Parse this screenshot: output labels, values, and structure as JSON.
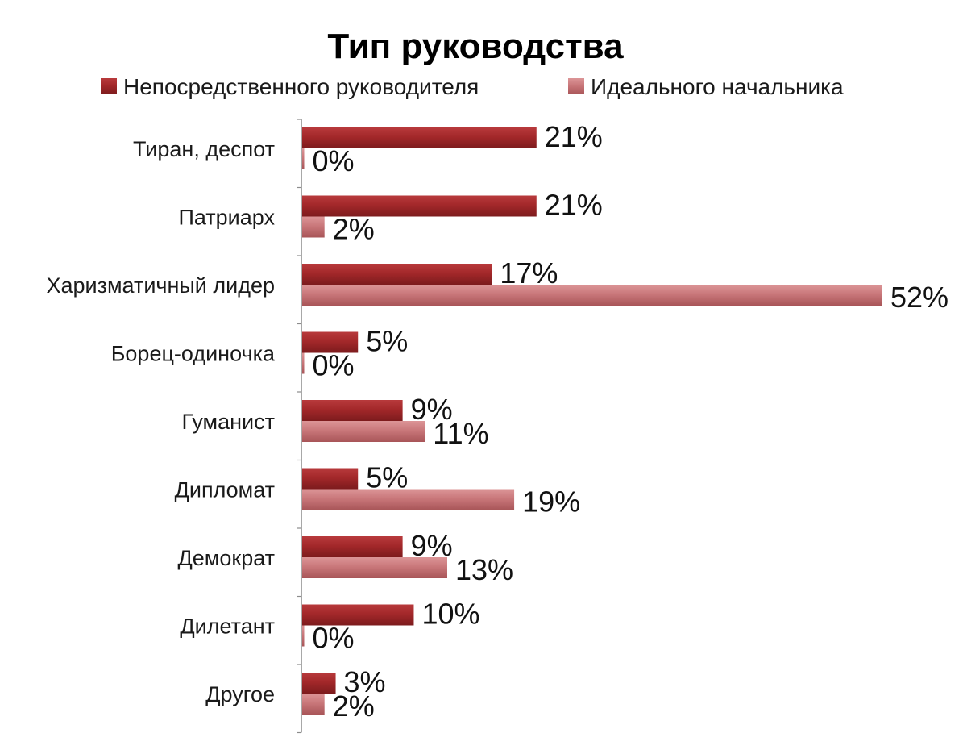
{
  "chart_data": {
    "type": "bar",
    "orientation": "horizontal",
    "title": "Тип руководства",
    "legend_position": "top",
    "grid": false,
    "xlim": [
      0,
      52
    ],
    "categories": [
      "Тиран, деспот",
      "Патриарх",
      "Харизматичный лидер",
      "Борец-одиночка",
      "Гуманист",
      "Дипломат",
      "Демократ",
      "Дилетант",
      "Другое"
    ],
    "series": [
      {
        "name": "Непосредственного руководителя",
        "color": "#a3282a",
        "values": [
          21,
          21,
          17,
          5,
          9,
          5,
          9,
          10,
          3
        ],
        "labels": [
          "21%",
          "21%",
          "17%",
          "5%",
          "9%",
          "5%",
          "9%",
          "10%",
          "3%"
        ]
      },
      {
        "name": "Идеального начальника",
        "color": "#c9777a",
        "values": [
          0,
          2,
          52,
          0,
          11,
          19,
          13,
          0,
          2
        ],
        "labels": [
          "0%",
          "2%",
          "52%",
          "0%",
          "11%",
          "19%",
          "13%",
          "0%",
          "2%"
        ]
      }
    ]
  }
}
